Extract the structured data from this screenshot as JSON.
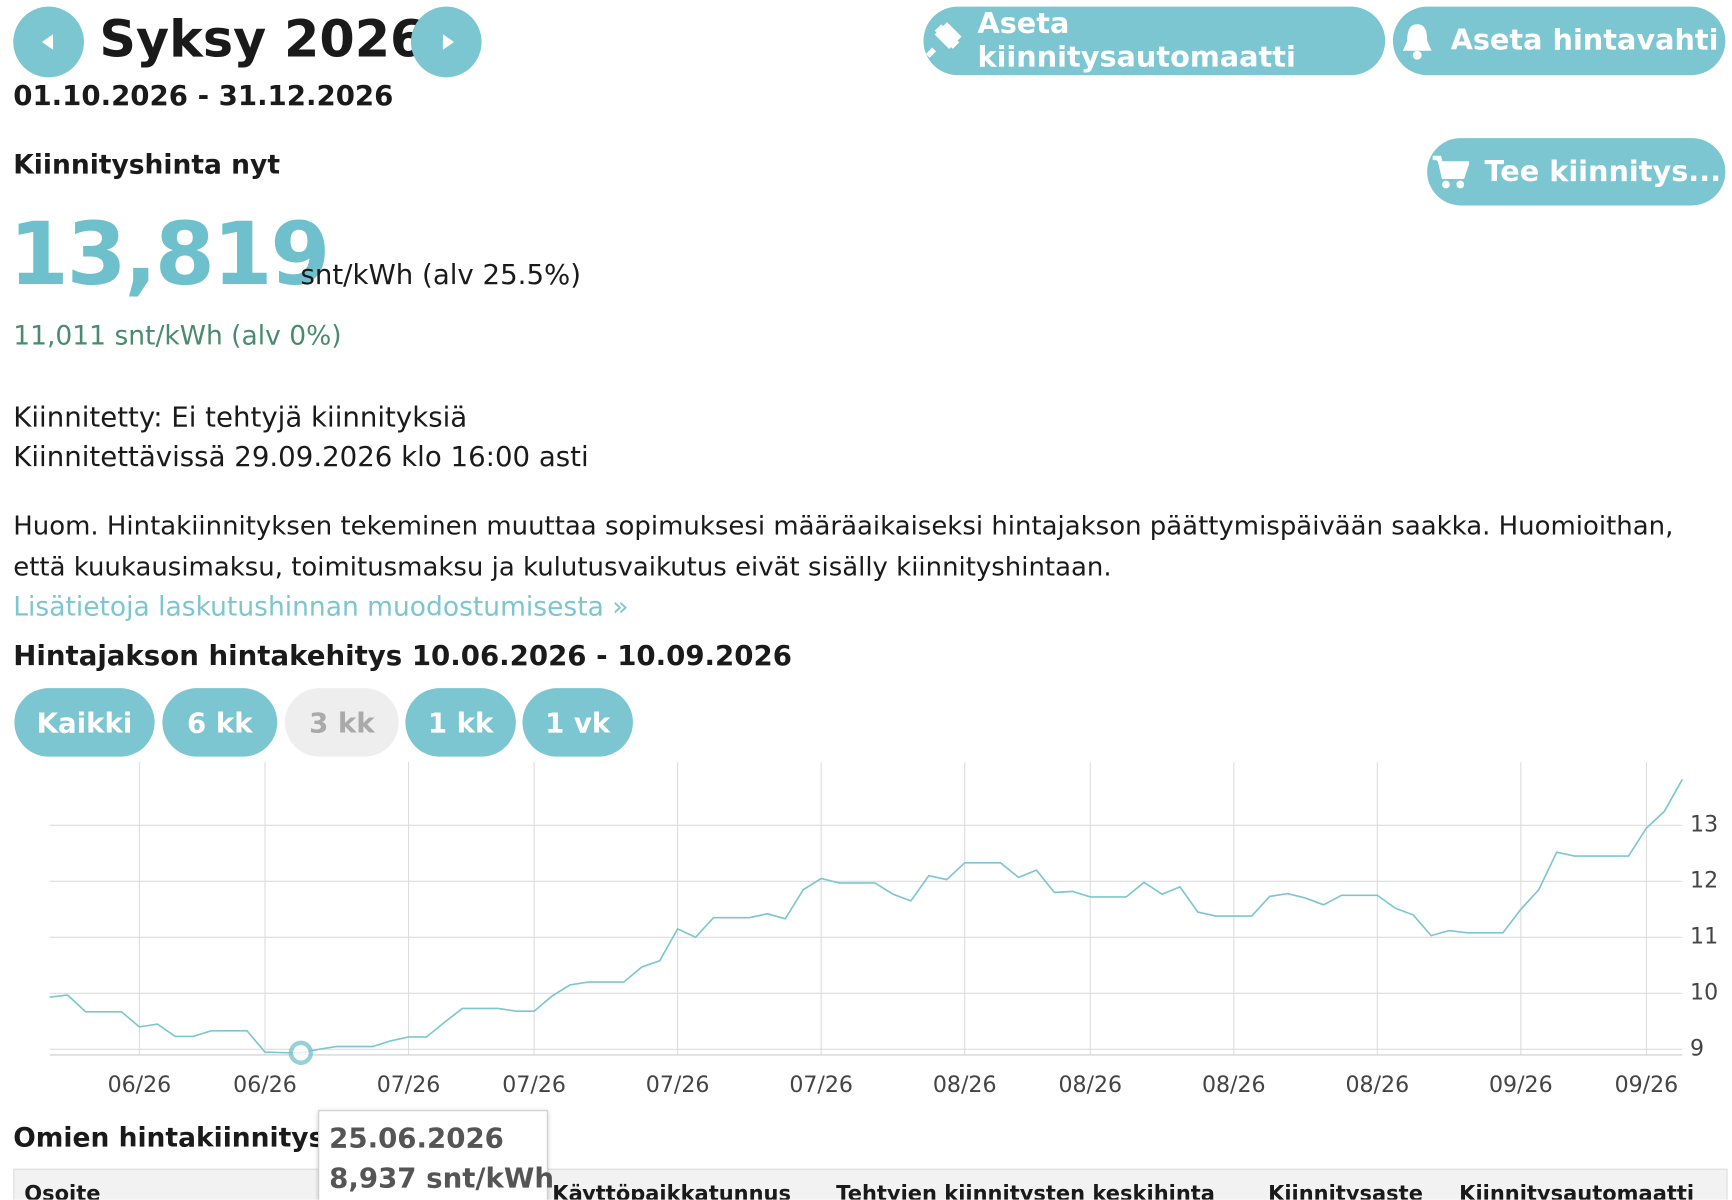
{
  "header": {
    "season": "Syksy 2026",
    "dates": "01.10.2026 - 31.12.2026"
  },
  "buttons": [
    "Aseta kiinnitysautomaatti",
    "Aseta hintavahti",
    "Tee kiinnitys..."
  ],
  "price": {
    "label": "Kiinnityshinta nyt",
    "value": "13,819",
    "unit": "snt/kWh (alv 25.5%)",
    "vat0": "11,011 snt/kWh (alv 0%)"
  },
  "status": [
    "Kiinnitetty: Ei tehtyjä kiinnityksiä",
    "Kiinnitettävissä 29.09.2026 klo 16:00 asti"
  ],
  "note": [
    "Huom. Hintakiinnityksen tekeminen muuttaa sopimuksesi määräaikaiseksi hintajakson päättymispäivään saakka. Huomioithan,",
    "että kuukausimaksu, toimitusmaksu ja kulutusvaikutus eivät sisälly kiinnityshintaan."
  ],
  "link": "Lisätietoja laskutushinnan muodostumisesta »",
  "chart_heading": "Hintajakson hintakehitys 10.06.2026 - 10.09.2026",
  "ranges": [
    "Kaikki",
    "6 kk",
    "3 kk",
    "1 kk",
    "1 vk"
  ],
  "chart_data": {
    "type": "line",
    "color": "#7cc6d1",
    "grid": true,
    "categories": [
      null,
      null,
      null,
      null,
      null,
      "06/26",
      null,
      null,
      null,
      null,
      null,
      null,
      "06/26",
      null,
      null,
      null,
      null,
      null,
      null,
      null,
      "07/26",
      null,
      null,
      null,
      null,
      null,
      null,
      "07/26",
      null,
      null,
      null,
      null,
      null,
      null,
      null,
      "07/26",
      null,
      null,
      null,
      null,
      null,
      null,
      null,
      "07/26",
      null,
      null,
      null,
      null,
      null,
      null,
      null,
      "08/26",
      null,
      null,
      null,
      null,
      null,
      null,
      "08/26",
      null,
      null,
      null,
      null,
      null,
      null,
      null,
      "08/26",
      null,
      null,
      null,
      null,
      null,
      null,
      null,
      "08/26",
      null,
      null,
      null,
      null,
      null,
      null,
      null,
      "09/26",
      null,
      null,
      null,
      null,
      null,
      null,
      "09/26",
      null,
      null
    ],
    "values": [
      9.93,
      9.97,
      9.67,
      9.67,
      9.67,
      9.4,
      9.45,
      9.23,
      9.23,
      9.33,
      9.33,
      9.33,
      8.95,
      8.94,
      8.937,
      9.0,
      9.05,
      9.05,
      9.05,
      9.15,
      9.22,
      9.22,
      9.48,
      9.73,
      9.73,
      9.73,
      9.68,
      9.68,
      9.95,
      10.15,
      10.2,
      10.2,
      10.2,
      10.47,
      10.58,
      11.15,
      11.0,
      11.35,
      11.35,
      11.35,
      11.42,
      11.33,
      11.85,
      12.05,
      11.97,
      11.97,
      11.97,
      11.77,
      11.65,
      12.1,
      12.03,
      12.33,
      12.33,
      12.33,
      12.07,
      12.2,
      11.8,
      11.82,
      11.72,
      11.72,
      11.72,
      11.98,
      11.77,
      11.9,
      11.45,
      11.38,
      11.38,
      11.38,
      11.73,
      11.78,
      11.7,
      11.58,
      11.75,
      11.75,
      11.75,
      11.52,
      11.4,
      11.03,
      11.12,
      11.08,
      11.08,
      11.08,
      11.5,
      11.85,
      12.52,
      12.45,
      12.45,
      12.45,
      12.45,
      12.95,
      13.25,
      13.819
    ],
    "ylim": [
      8.9,
      13.93
    ],
    "yticks": [
      9,
      10,
      11,
      12,
      13
    ],
    "tooltip": {
      "title": "25.06.2026",
      "text": "8,937 snt/kWh"
    }
  },
  "table": {
    "title": "Omien hintakiinnitysten",
    "headers": [
      "Osoite",
      "Käyttöpaikkatunnus",
      "Tehtyjen kiinnitysten keskihinta",
      "Kiinnitysaste",
      "Kiinnitysautomaatti"
    ]
  }
}
